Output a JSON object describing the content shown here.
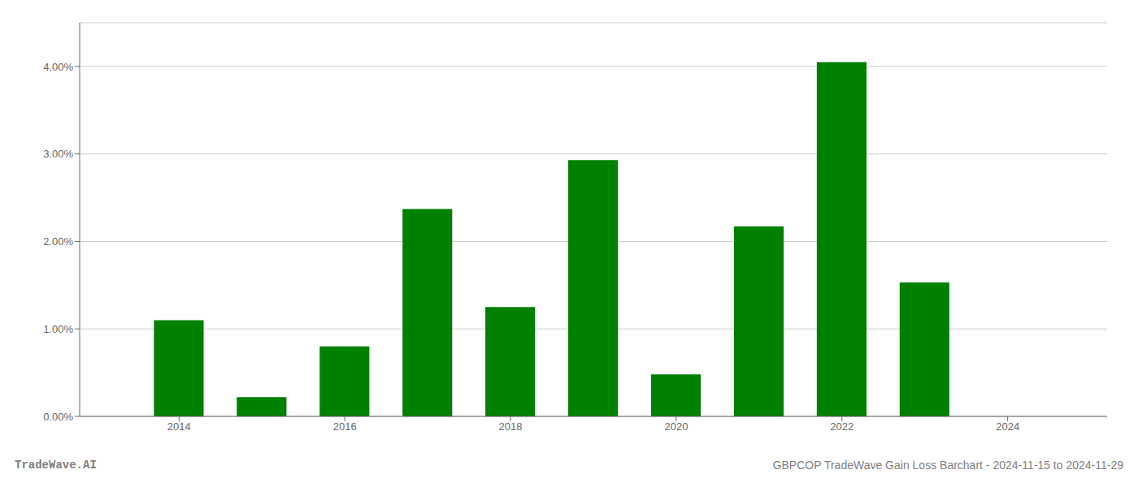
{
  "chart_data": {
    "type": "bar",
    "x": [
      2014,
      2015,
      2016,
      2017,
      2018,
      2019,
      2020,
      2021,
      2022,
      2023,
      2024
    ],
    "values": [
      0.011,
      0.0022,
      0.008,
      0.0237,
      0.0125,
      0.0293,
      0.0048,
      0.0217,
      0.0405,
      0.0153,
      0.0
    ],
    "color": "#008000",
    "xlim": [
      2012.8,
      2025.2
    ],
    "xticks": [
      2014,
      2016,
      2018,
      2020,
      2022,
      2024
    ],
    "ylim": [
      0,
      0.045
    ],
    "yticks": [
      {
        "value": 0.0,
        "label": "0.00%"
      },
      {
        "value": 0.01,
        "label": "1.00%"
      },
      {
        "value": 0.02,
        "label": "2.00%"
      },
      {
        "value": 0.03,
        "label": "3.00%"
      },
      {
        "value": 0.04,
        "label": "4.00%"
      }
    ],
    "grid": true,
    "annotations": [
      "TradeWave.AI",
      "GBPCOP TradeWave Gain Loss Barchart - 2024-11-15 to 2024-11-29"
    ]
  }
}
